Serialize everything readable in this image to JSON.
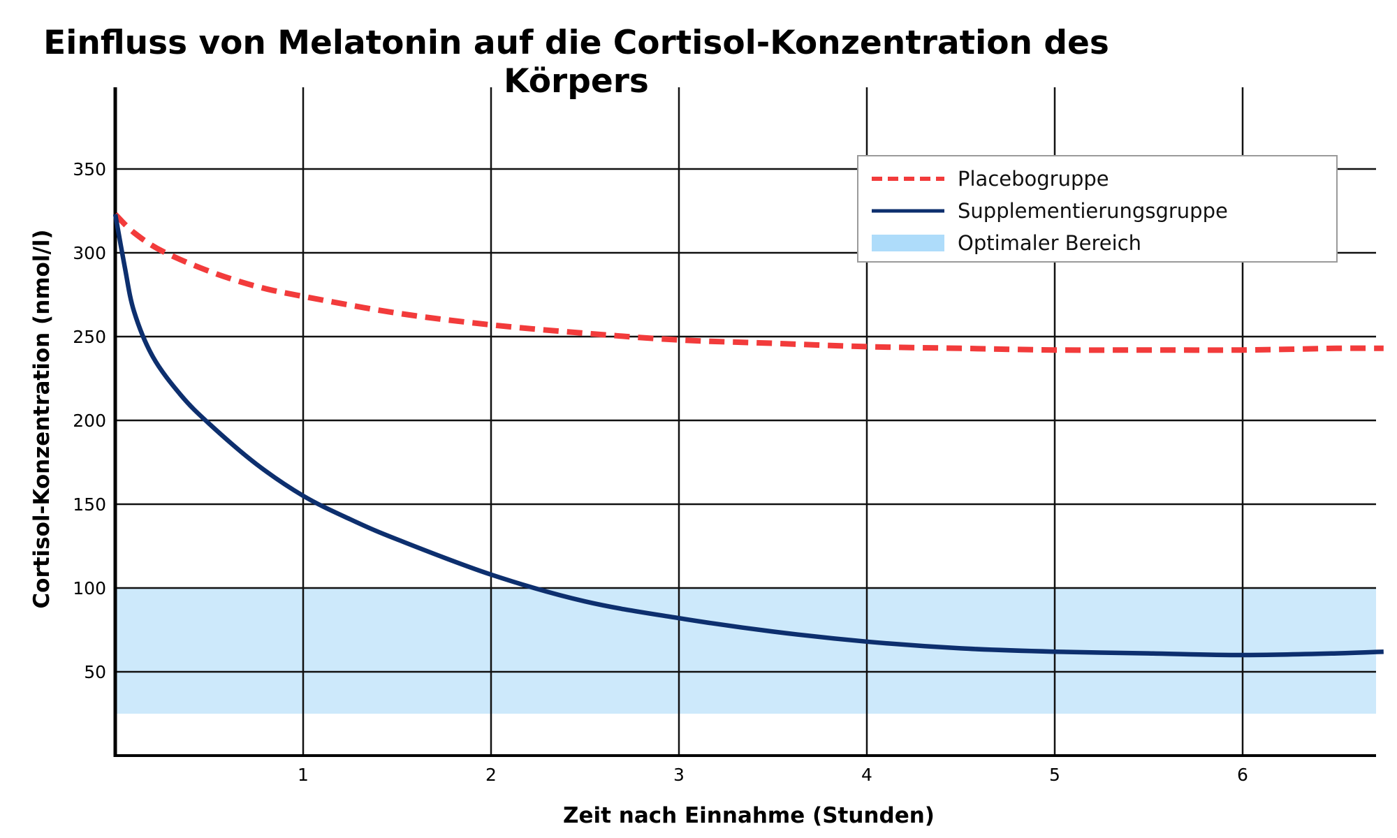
{
  "chart_data": {
    "type": "line",
    "title": "Einfluss von Melatonin auf die Cortisol-Konzentration des Körpers",
    "xlabel": "Zeit nach Einnahme (Stunden)",
    "ylabel": "Cortisol-Konzentration (nmol/l)",
    "xlim": [
      0,
      6.75
    ],
    "ylim": [
      0,
      400
    ],
    "x_ticks": [
      1,
      2,
      3,
      4,
      5,
      6
    ],
    "y_ticks": [
      50,
      100,
      150,
      200,
      250,
      300,
      350
    ],
    "grid": true,
    "legend_position": "top-right",
    "series": [
      {
        "name": "Placebogruppe",
        "style": "dashed",
        "color": "#f23b3b",
        "x": [
          0,
          0.1,
          0.25,
          0.5,
          0.75,
          1,
          1.5,
          2,
          2.5,
          3,
          3.5,
          4,
          4.5,
          5,
          5.5,
          6,
          6.5,
          6.75
        ],
        "y": [
          323,
          312,
          301,
          289,
          280,
          274,
          264,
          257,
          252,
          248,
          246,
          244,
          243,
          242,
          242,
          242,
          243,
          243
        ]
      },
      {
        "name": "Supplementierungsgruppe",
        "style": "solid",
        "color": "#0d2f6e",
        "x": [
          0,
          0.05,
          0.1,
          0.2,
          0.35,
          0.5,
          0.75,
          1,
          1.25,
          1.5,
          2,
          2.5,
          3,
          3.5,
          4,
          4.5,
          5,
          5.5,
          6,
          6.5,
          6.75
        ],
        "y": [
          323,
          292,
          265,
          238,
          215,
          198,
          174,
          155,
          141,
          129,
          108,
          92,
          82,
          74,
          68,
          64,
          62,
          61,
          60,
          61,
          62
        ]
      }
    ],
    "bands": [
      {
        "name": "Optimaler Bereich",
        "y_range": [
          25,
          100
        ],
        "color": "#cde9fb"
      }
    ]
  }
}
